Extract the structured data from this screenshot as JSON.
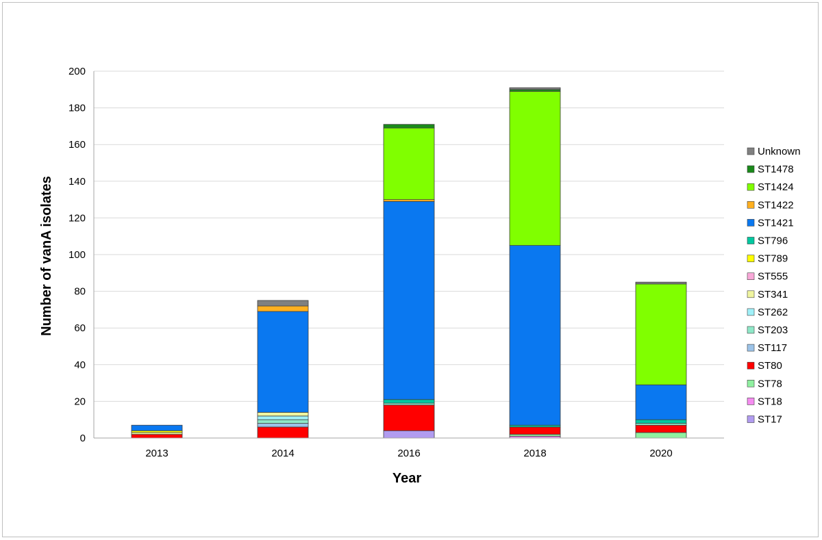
{
  "chart_data": {
    "type": "bar",
    "stacked": true,
    "title": "",
    "xlabel": "Year",
    "ylabel": "Number of vanA isolates",
    "categories": [
      "2013",
      "2014",
      "2016",
      "2018",
      "2020"
    ],
    "ylim": [
      0,
      200
    ],
    "yticks": [
      0,
      20,
      40,
      60,
      80,
      100,
      120,
      140,
      160,
      180,
      200
    ],
    "grid": true,
    "legend_position": "right",
    "series": [
      {
        "name": "ST17",
        "color": "#b19cf0",
        "values": [
          0,
          0,
          4,
          0,
          0
        ]
      },
      {
        "name": "ST18",
        "color": "#f58cf0",
        "values": [
          0,
          0,
          0,
          1,
          0
        ]
      },
      {
        "name": "ST78",
        "color": "#90f0a0",
        "values": [
          0,
          0,
          0,
          1,
          3
        ]
      },
      {
        "name": "ST80",
        "color": "#ff0000",
        "values": [
          2,
          6,
          14,
          4,
          4
        ]
      },
      {
        "name": "ST117",
        "color": "#9cc3e8",
        "values": [
          0,
          2,
          0,
          0,
          0
        ]
      },
      {
        "name": "ST203",
        "color": "#8fe8c8",
        "values": [
          0,
          2,
          1,
          0,
          1
        ]
      },
      {
        "name": "ST262",
        "color": "#a0f0f8",
        "values": [
          0,
          2,
          0,
          0,
          0
        ]
      },
      {
        "name": "ST341",
        "color": "#f0f5a0",
        "values": [
          1,
          2,
          0,
          0,
          0
        ]
      },
      {
        "name": "ST555",
        "color": "#f8a8d8",
        "values": [
          0,
          0,
          0,
          0,
          0
        ]
      },
      {
        "name": "ST789",
        "color": "#ffff00",
        "values": [
          1,
          0,
          0,
          0,
          0
        ]
      },
      {
        "name": "ST796",
        "color": "#00c8a0",
        "values": [
          0,
          0,
          2,
          1,
          2
        ]
      },
      {
        "name": "ST1421",
        "color": "#0a78f0",
        "values": [
          3,
          55,
          108,
          98,
          19
        ]
      },
      {
        "name": "ST1422",
        "color": "#ffb020",
        "values": [
          0,
          3,
          1,
          0,
          0
        ]
      },
      {
        "name": "ST1424",
        "color": "#80ff00",
        "values": [
          0,
          0,
          39,
          84,
          55
        ]
      },
      {
        "name": "ST1478",
        "color": "#1a8a1a",
        "values": [
          0,
          0,
          2,
          1,
          0
        ]
      },
      {
        "name": "Unknown",
        "color": "#808080",
        "values": [
          0,
          3,
          0,
          1,
          1
        ]
      }
    ]
  }
}
